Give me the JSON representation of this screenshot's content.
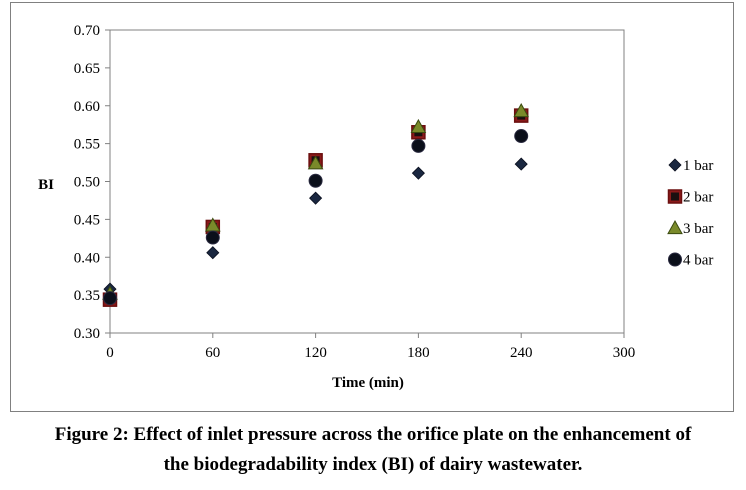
{
  "chart_data": {
    "type": "scatter",
    "title": "",
    "xlabel": "Time (min)",
    "ylabel": "BI",
    "xlim": [
      0,
      300
    ],
    "ylim": [
      0.3,
      0.7
    ],
    "x_ticks": [
      "0",
      "60",
      "120",
      "180",
      "240",
      "300"
    ],
    "y_ticks": [
      "0.30",
      "0.35",
      "0.40",
      "0.45",
      "0.50",
      "0.55",
      "0.60",
      "0.65",
      "0.70"
    ],
    "grid": false,
    "legend_position": "right",
    "x": [
      0,
      60,
      120,
      180,
      240
    ],
    "series": [
      {
        "name": "1 bar",
        "marker": "diamond",
        "color": "#1a2740",
        "values": [
          0.358,
          0.406,
          0.478,
          0.511,
          0.523
        ]
      },
      {
        "name": "2 bar",
        "marker": "square",
        "color": "#8b1a1a",
        "values": [
          0.344,
          0.44,
          0.528,
          0.565,
          0.587
        ]
      },
      {
        "name": "3 bar",
        "marker": "triangle",
        "color": "#4a5a1a",
        "values": [
          0.352,
          0.442,
          0.524,
          0.572,
          0.593
        ]
      },
      {
        "name": "4 bar",
        "marker": "circle",
        "color": "#0b0f1a",
        "values": [
          0.346,
          0.426,
          0.501,
          0.547,
          0.56
        ]
      }
    ]
  },
  "caption": {
    "line1": "Figure 2: Effect of inlet pressure across the orifice plate on the enhancement of",
    "line2": "the biodegradability index (BI) of dairy wastewater."
  }
}
